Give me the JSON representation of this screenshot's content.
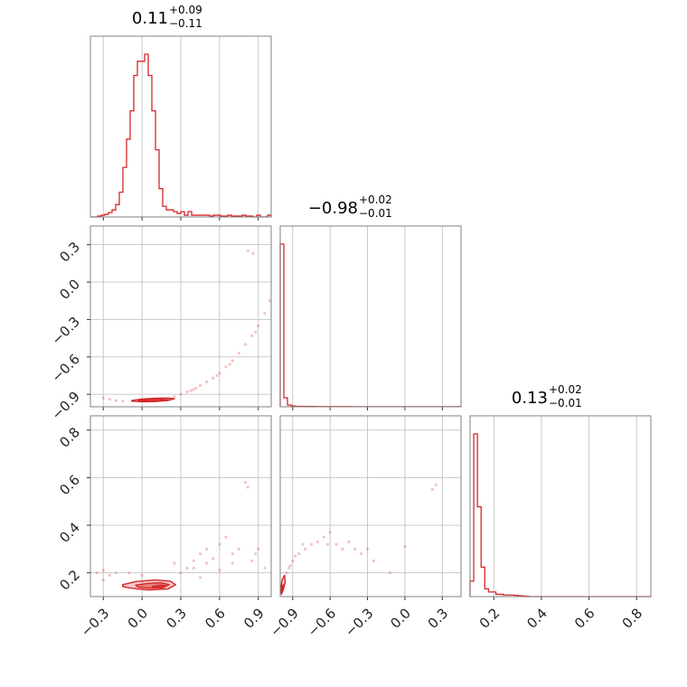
{
  "chart_data": {
    "type": "corner",
    "line_color": "#d62728",
    "grid": true,
    "parameters": [
      {
        "title": "0.11",
        "title_plus": "+0.09",
        "title_minus": "−0.11",
        "range": [
          -0.4,
          1.0
        ],
        "ticks": [
          -0.3,
          0.0,
          0.3,
          0.6,
          0.9
        ],
        "tick_labels": [
          "−0.3",
          "0.0",
          "0.3",
          "0.6",
          "0.9"
        ],
        "hist": {
          "edges_start": -0.4,
          "bin_width": 0.028,
          "counts": [
            0,
            0,
            0.5,
            1,
            1.5,
            2.5,
            4,
            7,
            14,
            28,
            44,
            60,
            80,
            88,
            88,
            92,
            80,
            60,
            38,
            16,
            6,
            4,
            4,
            3,
            2,
            3,
            1,
            3,
            1,
            1,
            1,
            1,
            1,
            0.5,
            1,
            1,
            0.5,
            0.5,
            1,
            0.5,
            0.5,
            0.5,
            1,
            0.5,
            0.5,
            0,
            1,
            0,
            0,
            1
          ]
        }
      },
      {
        "title": "−0.98",
        "title_plus": "+0.02",
        "title_minus": "−0.01",
        "range": [
          -1.0,
          0.45
        ],
        "ticks": [
          -0.9,
          -0.6,
          -0.3,
          0.0,
          0.3
        ],
        "tick_labels": [
          "−0.9",
          "−0.6",
          "−0.3",
          "0.0",
          "0.3"
        ],
        "hist": {
          "edges_start": -1.0,
          "bin_width": 0.029,
          "counts": [
            180,
            10,
            2,
            1,
            0.5,
            0.5,
            0.5,
            0.3,
            0.3,
            0.3,
            0.2,
            0.2,
            0.2,
            0.2,
            0.2,
            0.2,
            0.2,
            0.2,
            0.2,
            0.2,
            0.1,
            0.1,
            0.1,
            0.1,
            0.1,
            0.1,
            0.1,
            0.1,
            0.1,
            0.1,
            0.1,
            0.1,
            0.1,
            0.1,
            0.1,
            0.1,
            0.1,
            0.1,
            0.1,
            0.1,
            0.1,
            0.1,
            0.1,
            0.1,
            0.1,
            0.1,
            0.1,
            0.1,
            0.1,
            0.2
          ]
        }
      },
      {
        "title": "0.13",
        "title_plus": "+0.02",
        "title_minus": "−0.01",
        "range": [
          0.1,
          0.86
        ],
        "ticks": [
          0.2,
          0.4,
          0.6,
          0.8
        ],
        "tick_labels": [
          "0.2",
          "0.4",
          "0.6",
          "0.8"
        ],
        "hist": {
          "edges_start": 0.1,
          "bin_width": 0.0155,
          "counts": [
            10,
            105,
            58,
            19,
            5,
            3,
            3,
            1.5,
            1.5,
            1,
            1,
            1,
            0.8,
            0.6,
            0.4,
            0.2,
            0,
            0,
            0,
            0,
            0,
            0,
            0,
            0,
            0,
            0,
            0,
            0,
            0,
            0,
            0,
            0,
            0,
            0,
            0,
            0,
            0,
            0,
            0,
            0,
            0,
            0,
            0,
            0,
            0,
            0,
            0,
            0,
            0,
            0
          ]
        }
      }
    ],
    "panels": [
      {
        "row": 1,
        "col": 0,
        "ylim": [
          -1.0,
          0.45
        ],
        "yticks": [
          0.3,
          0.0,
          -0.3,
          -0.6,
          -0.9
        ],
        "ytick_labels": [
          "0.3",
          "0.0",
          "−0.3",
          "−0.6",
          "−0.9"
        ],
        "contours": [
          {
            "level": 1,
            "points": [
              [
                -0.08,
                -0.95
              ],
              [
                0.0,
                -0.938
              ],
              [
                0.1,
                -0.932
              ],
              [
                0.2,
                -0.93
              ],
              [
                0.25,
                -0.935
              ],
              [
                0.2,
                -0.95
              ],
              [
                0.1,
                -0.958
              ],
              [
                0.0,
                -0.96
              ],
              [
                -0.08,
                -0.955
              ]
            ]
          },
          {
            "level": 2,
            "points": [
              [
                -0.03,
                -0.948
              ],
              [
                0.05,
                -0.942
              ],
              [
                0.15,
                -0.94
              ],
              [
                0.21,
                -0.944
              ],
              [
                0.15,
                -0.952
              ],
              [
                0.05,
                -0.954
              ],
              [
                -0.03,
                -0.952
              ]
            ]
          }
        ],
        "points": [
          [
            -0.3,
            -0.93
          ],
          [
            -0.25,
            -0.94
          ],
          [
            -0.2,
            -0.95
          ],
          [
            -0.15,
            -0.955
          ],
          [
            0.25,
            -0.92
          ],
          [
            0.3,
            -0.9
          ],
          [
            0.35,
            -0.88
          ],
          [
            0.4,
            -0.86
          ],
          [
            0.45,
            -0.83
          ],
          [
            0.5,
            -0.8
          ],
          [
            0.55,
            -0.77
          ],
          [
            0.6,
            -0.73
          ],
          [
            0.65,
            -0.68
          ],
          [
            0.7,
            -0.63
          ],
          [
            0.75,
            -0.57
          ],
          [
            0.8,
            -0.5
          ],
          [
            0.85,
            -0.43
          ],
          [
            0.9,
            -0.35
          ],
          [
            0.95,
            -0.25
          ],
          [
            0.99,
            -0.15
          ],
          [
            0.82,
            0.25
          ],
          [
            0.86,
            0.23
          ],
          [
            0.38,
            -0.87
          ],
          [
            0.42,
            -0.85
          ],
          [
            0.58,
            -0.75
          ],
          [
            0.68,
            -0.66
          ],
          [
            0.88,
            -0.4
          ]
        ]
      },
      {
        "row": 2,
        "col": 0,
        "ylim": [
          0.1,
          0.86
        ],
        "yticks": [
          0.8,
          0.6,
          0.4,
          0.2
        ],
        "ytick_labels": [
          "0.8",
          "0.6",
          "0.4",
          "0.2"
        ],
        "contours": [
          {
            "level": 1,
            "points": [
              [
                -0.15,
                0.15
              ],
              [
                -0.05,
                0.163
              ],
              [
                0.1,
                0.17
              ],
              [
                0.22,
                0.165
              ],
              [
                0.26,
                0.15
              ],
              [
                0.2,
                0.132
              ],
              [
                0.05,
                0.128
              ],
              [
                -0.08,
                0.135
              ],
              [
                -0.15,
                0.142
              ]
            ]
          },
          {
            "level": 2,
            "points": [
              [
                -0.05,
                0.148
              ],
              [
                0.05,
                0.156
              ],
              [
                0.15,
                0.158
              ],
              [
                0.21,
                0.15
              ],
              [
                0.15,
                0.137
              ],
              [
                0.05,
                0.136
              ],
              [
                -0.03,
                0.14
              ]
            ]
          },
          {
            "level": 3,
            "points": [
              [
                0.08,
                0.142
              ],
              [
                0.14,
                0.148
              ],
              [
                0.19,
                0.145
              ],
              [
                0.16,
                0.137
              ],
              [
                0.1,
                0.137
              ]
            ]
          }
        ],
        "points": [
          [
            -0.35,
            0.2
          ],
          [
            -0.3,
            0.21
          ],
          [
            -0.25,
            0.19
          ],
          [
            -0.2,
            0.2
          ],
          [
            -0.1,
            0.2
          ],
          [
            0.0,
            0.19
          ],
          [
            0.3,
            0.2
          ],
          [
            0.35,
            0.22
          ],
          [
            0.4,
            0.25
          ],
          [
            0.45,
            0.28
          ],
          [
            0.5,
            0.3
          ],
          [
            0.55,
            0.26
          ],
          [
            0.6,
            0.32
          ],
          [
            0.65,
            0.35
          ],
          [
            0.7,
            0.28
          ],
          [
            0.75,
            0.3
          ],
          [
            0.8,
            0.58
          ],
          [
            0.82,
            0.56
          ],
          [
            0.85,
            0.25
          ],
          [
            0.9,
            0.3
          ],
          [
            0.95,
            0.22
          ],
          [
            0.4,
            0.22
          ],
          [
            0.5,
            0.24
          ],
          [
            0.6,
            0.21
          ],
          [
            0.7,
            0.24
          ],
          [
            -0.3,
            0.17
          ],
          [
            0.25,
            0.24
          ],
          [
            0.45,
            0.18
          ],
          [
            0.88,
            0.28
          ]
        ]
      },
      {
        "row": 2,
        "col": 1,
        "xlim": [
          -1.0,
          0.45
        ],
        "ylim": [
          0.1,
          0.86
        ],
        "contours": [
          {
            "level": 1,
            "points": [
              [
                -0.99,
                0.11
              ],
              [
                -0.975,
                0.13
              ],
              [
                -0.96,
                0.16
              ],
              [
                -0.965,
                0.19
              ],
              [
                -0.985,
                0.17
              ],
              [
                -0.995,
                0.14
              ]
            ]
          },
          {
            "level": 2,
            "points": [
              [
                -0.99,
                0.12
              ],
              [
                -0.98,
                0.135
              ],
              [
                -0.975,
                0.15
              ],
              [
                -0.985,
                0.145
              ],
              [
                -0.993,
                0.13
              ]
            ]
          }
        ],
        "points": [
          [
            -0.95,
            0.2
          ],
          [
            -0.93,
            0.22
          ],
          [
            -0.9,
            0.25
          ],
          [
            -0.88,
            0.27
          ],
          [
            -0.85,
            0.28
          ],
          [
            -0.8,
            0.3
          ],
          [
            -0.75,
            0.32
          ],
          [
            -0.7,
            0.33
          ],
          [
            -0.65,
            0.35
          ],
          [
            -0.6,
            0.37
          ],
          [
            -0.55,
            0.32
          ],
          [
            -0.5,
            0.3
          ],
          [
            -0.45,
            0.33
          ],
          [
            -0.4,
            0.3
          ],
          [
            -0.3,
            0.3
          ],
          [
            -0.25,
            0.25
          ],
          [
            -0.12,
            0.2
          ],
          [
            0.0,
            0.31
          ],
          [
            0.25,
            0.57
          ],
          [
            0.22,
            0.55
          ],
          [
            -0.82,
            0.32
          ],
          [
            -0.62,
            0.32
          ],
          [
            -0.92,
            0.23
          ],
          [
            -0.35,
            0.28
          ]
        ]
      }
    ]
  }
}
